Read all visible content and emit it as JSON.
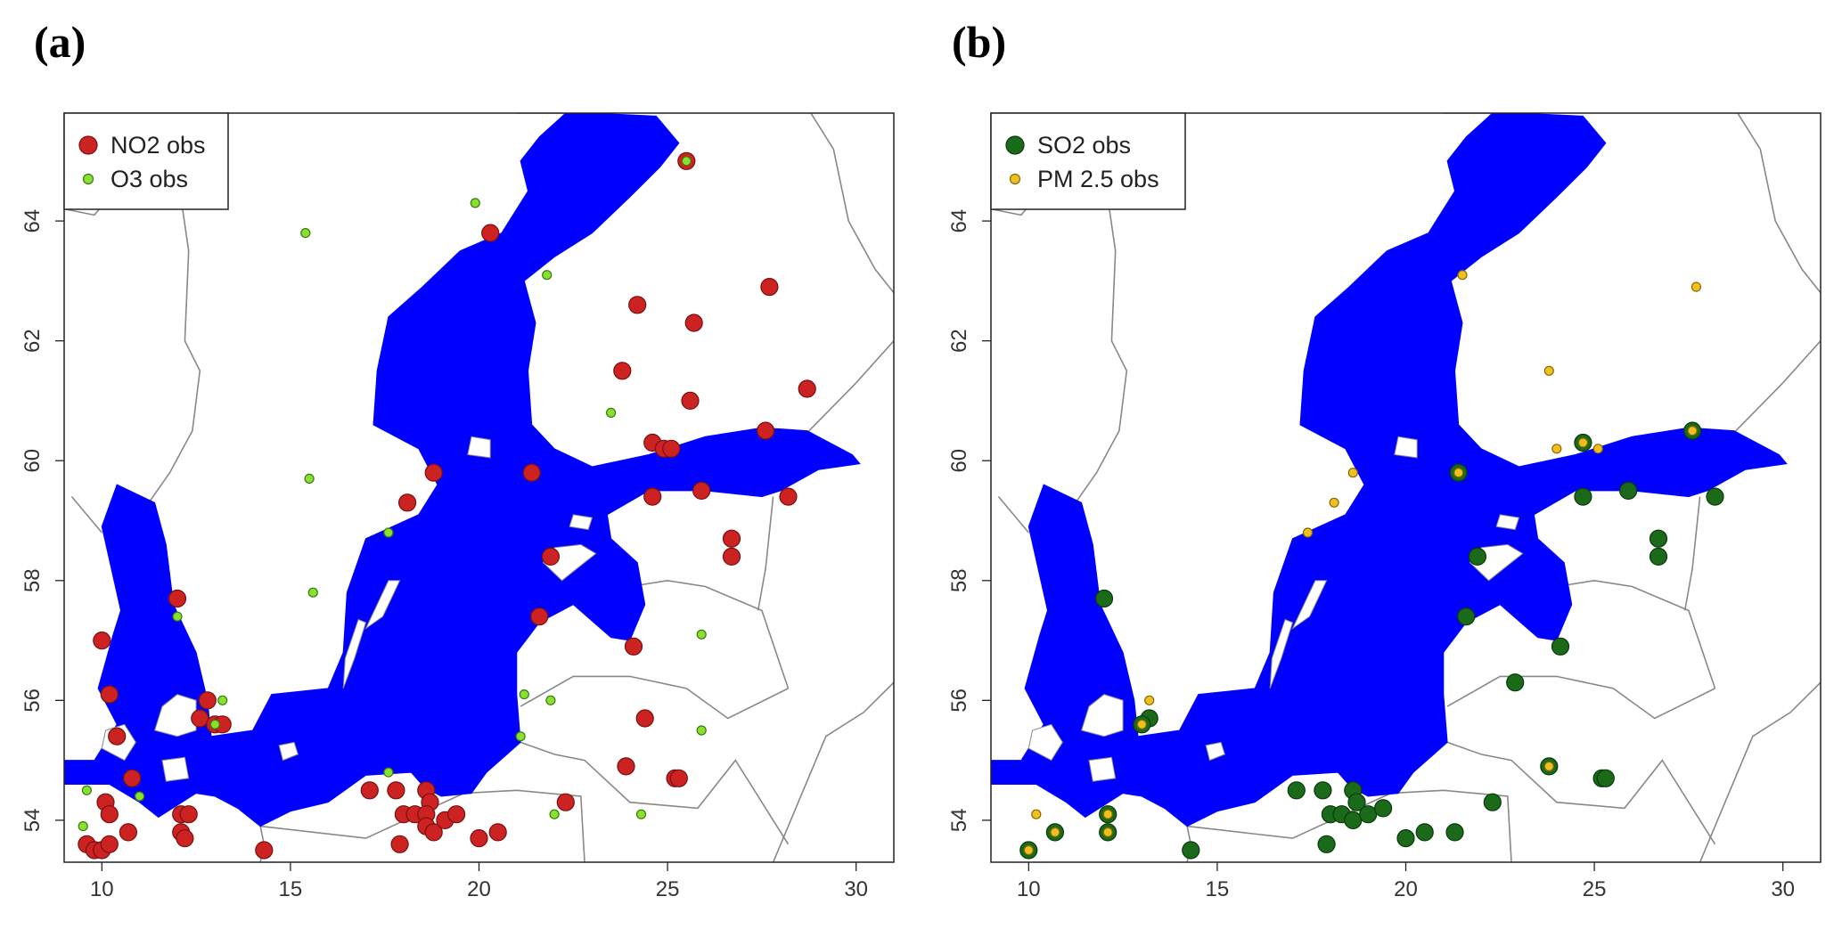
{
  "panels": [
    {
      "label": "(a)",
      "legend": [
        {
          "label": "NO2 obs",
          "fill": "#cc2222",
          "stroke": "#7a1010",
          "size": "large"
        },
        {
          "label": "O3 obs",
          "fill": "#88e030",
          "stroke": "#3a7a10",
          "size": "small"
        }
      ],
      "x_ticks": [
        "10",
        "15",
        "20",
        "25",
        "30"
      ],
      "y_ticks": [
        "54",
        "56",
        "58",
        "60",
        "62",
        "64"
      ]
    },
    {
      "label": "(b)",
      "legend": [
        {
          "label": "SO2 obs",
          "fill": "#1a6a1a",
          "stroke": "#0a3a0a",
          "size": "large"
        },
        {
          "label": "PM 2.5 obs",
          "fill": "#f0c020",
          "stroke": "#8a6a00",
          "size": "small"
        }
      ],
      "x_ticks": [
        "10",
        "15",
        "20",
        "25",
        "30"
      ],
      "y_ticks": [
        "54",
        "56",
        "58",
        "60",
        "62",
        "64"
      ]
    }
  ],
  "map": {
    "water_color": "#0000ff",
    "border_color": "#888888",
    "extent": {
      "lon": [
        9,
        31
      ],
      "lat": [
        53.3,
        65.8
      ]
    }
  },
  "chart_data": [
    {
      "type": "scatter",
      "panel": "(a)",
      "series": [
        {
          "name": "NO2 obs",
          "points": [
            [
              25.5,
              65.0
            ],
            [
              20.3,
              63.8
            ],
            [
              27.7,
              62.9
            ],
            [
              24.2,
              62.6
            ],
            [
              25.7,
              62.3
            ],
            [
              23.8,
              61.5
            ],
            [
              28.7,
              61.2
            ],
            [
              25.6,
              61.0
            ],
            [
              24.6,
              60.3
            ],
            [
              24.9,
              60.2
            ],
            [
              25.1,
              60.2
            ],
            [
              27.6,
              60.5
            ],
            [
              21.4,
              59.8
            ],
            [
              24.6,
              59.4
            ],
            [
              25.9,
              59.5
            ],
            [
              28.2,
              59.4
            ],
            [
              18.8,
              59.8
            ],
            [
              18.1,
              59.3
            ],
            [
              26.7,
              58.7
            ],
            [
              26.7,
              58.4
            ],
            [
              21.9,
              58.4
            ],
            [
              21.6,
              57.4
            ],
            [
              24.1,
              56.9
            ],
            [
              12.0,
              57.7
            ],
            [
              10.0,
              57.0
            ],
            [
              10.2,
              56.1
            ],
            [
              10.4,
              55.4
            ],
            [
              12.6,
              55.7
            ],
            [
              12.8,
              56.0
            ],
            [
              13.0,
              55.6
            ],
            [
              13.2,
              55.6
            ],
            [
              10.8,
              54.7
            ],
            [
              10.1,
              54.3
            ],
            [
              10.2,
              54.1
            ],
            [
              10.7,
              53.8
            ],
            [
              12.1,
              54.1
            ],
            [
              12.3,
              54.1
            ],
            [
              12.1,
              53.8
            ],
            [
              12.2,
              53.7
            ],
            [
              9.6,
              53.6
            ],
            [
              9.8,
              53.5
            ],
            [
              10.0,
              53.5
            ],
            [
              10.2,
              53.6
            ],
            [
              14.3,
              53.5
            ],
            [
              17.1,
              54.5
            ],
            [
              17.8,
              54.5
            ],
            [
              18.0,
              54.1
            ],
            [
              18.3,
              54.1
            ],
            [
              18.6,
              54.5
            ],
            [
              18.7,
              54.3
            ],
            [
              18.6,
              54.1
            ],
            [
              18.6,
              53.9
            ],
            [
              18.8,
              53.8
            ],
            [
              19.1,
              54.0
            ],
            [
              19.4,
              54.1
            ],
            [
              17.9,
              53.6
            ],
            [
              20.0,
              53.7
            ],
            [
              20.5,
              53.8
            ],
            [
              22.3,
              54.3
            ],
            [
              23.9,
              54.9
            ],
            [
              24.4,
              55.7
            ],
            [
              25.2,
              54.7
            ],
            [
              25.3,
              54.7
            ]
          ]
        },
        {
          "name": "O3 obs",
          "points": [
            [
              25.5,
              65.0
            ],
            [
              19.9,
              64.3
            ],
            [
              15.4,
              63.8
            ],
            [
              21.8,
              63.1
            ],
            [
              23.5,
              60.8
            ],
            [
              15.5,
              59.7
            ],
            [
              17.6,
              58.8
            ],
            [
              15.6,
              57.8
            ],
            [
              12.0,
              57.4
            ],
            [
              25.9,
              57.1
            ],
            [
              21.2,
              56.1
            ],
            [
              21.9,
              56.0
            ],
            [
              13.2,
              56.0
            ],
            [
              13.0,
              55.6
            ],
            [
              25.9,
              55.5
            ],
            [
              21.1,
              55.4
            ],
            [
              17.6,
              54.8
            ],
            [
              11.0,
              54.4
            ],
            [
              9.6,
              54.5
            ],
            [
              9.5,
              53.9
            ],
            [
              22.0,
              54.1
            ],
            [
              24.3,
              54.1
            ]
          ]
        }
      ]
    },
    {
      "type": "scatter",
      "panel": "(b)",
      "series": [
        {
          "name": "SO2 obs",
          "points": [
            [
              24.7,
              60.3
            ],
            [
              27.6,
              60.5
            ],
            [
              21.4,
              59.8
            ],
            [
              24.7,
              59.4
            ],
            [
              25.9,
              59.5
            ],
            [
              28.2,
              59.4
            ],
            [
              26.7,
              58.7
            ],
            [
              26.7,
              58.4
            ],
            [
              21.9,
              58.4
            ],
            [
              21.6,
              57.4
            ],
            [
              24.1,
              56.9
            ],
            [
              22.9,
              56.3
            ],
            [
              12.0,
              57.7
            ],
            [
              13.2,
              55.7
            ],
            [
              13.0,
              55.6
            ],
            [
              23.8,
              54.9
            ],
            [
              25.2,
              54.7
            ],
            [
              25.3,
              54.7
            ],
            [
              12.1,
              54.1
            ],
            [
              12.1,
              53.8
            ],
            [
              10.7,
              53.8
            ],
            [
              10.0,
              53.5
            ],
            [
              14.3,
              53.5
            ],
            [
              17.1,
              54.5
            ],
            [
              17.8,
              54.5
            ],
            [
              18.0,
              54.1
            ],
            [
              18.3,
              54.1
            ],
            [
              18.6,
              54.5
            ],
            [
              18.7,
              54.3
            ],
            [
              18.6,
              54.0
            ],
            [
              19.0,
              54.1
            ],
            [
              19.4,
              54.2
            ],
            [
              17.9,
              53.6
            ],
            [
              20.0,
              53.7
            ],
            [
              20.5,
              53.8
            ],
            [
              21.3,
              53.8
            ],
            [
              22.3,
              54.3
            ]
          ]
        },
        {
          "name": "PM 2.5 obs",
          "points": [
            [
              21.5,
              63.1
            ],
            [
              27.7,
              62.9
            ],
            [
              23.8,
              61.5
            ],
            [
              24.0,
              60.2
            ],
            [
              24.7,
              60.3
            ],
            [
              25.1,
              60.2
            ],
            [
              27.6,
              60.5
            ],
            [
              21.4,
              59.8
            ],
            [
              18.6,
              59.8
            ],
            [
              18.1,
              59.3
            ],
            [
              17.4,
              58.8
            ],
            [
              13.2,
              56.0
            ],
            [
              13.0,
              55.6
            ],
            [
              23.8,
              54.9
            ],
            [
              12.1,
              54.1
            ],
            [
              12.1,
              53.8
            ],
            [
              10.7,
              53.8
            ],
            [
              10.2,
              54.1
            ],
            [
              10.0,
              53.5
            ]
          ]
        }
      ]
    }
  ]
}
